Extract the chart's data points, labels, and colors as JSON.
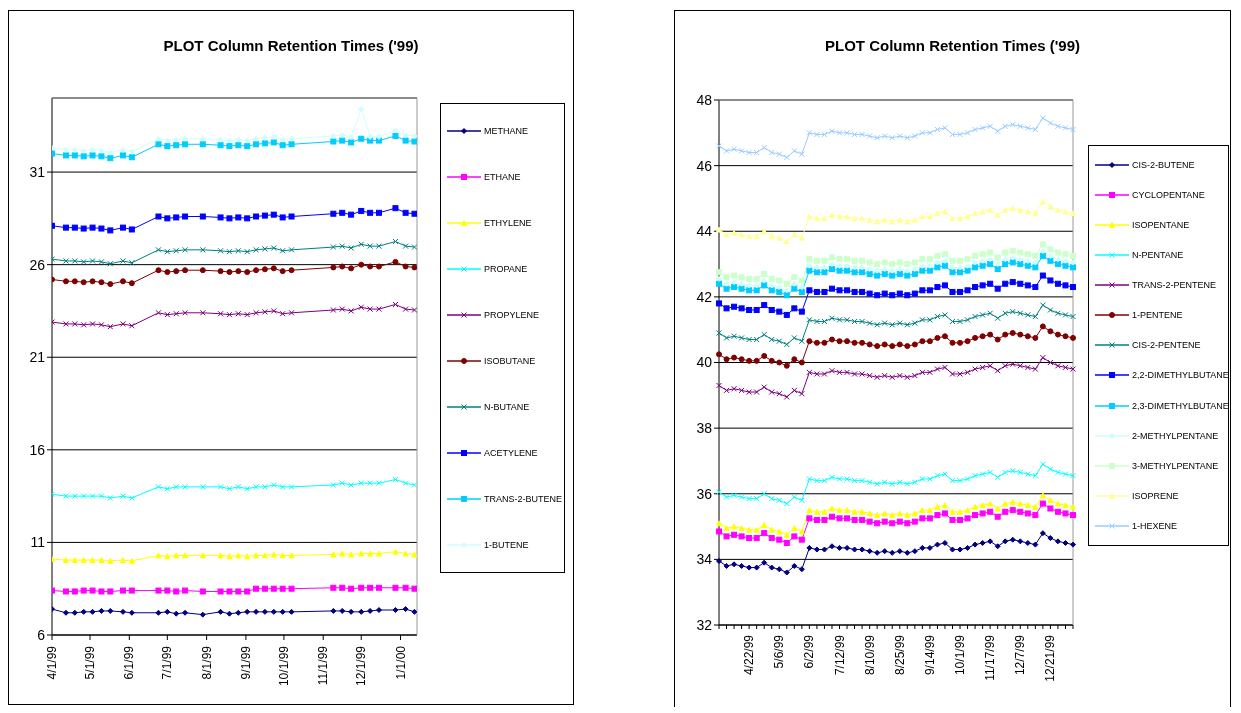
{
  "chart_data": [
    {
      "type": "line",
      "title": "PLOT Column Retention Times ('99)",
      "x": [
        "1999-04-01",
        "1999-04-12",
        "1999-04-19",
        "1999-04-26",
        "1999-05-03",
        "1999-05-10",
        "1999-05-17",
        "1999-05-27",
        "1999-06-03",
        "1999-06-24",
        "1999-07-01",
        "1999-07-08",
        "1999-07-15",
        "1999-07-29",
        "1999-08-12",
        "1999-08-19",
        "1999-08-26",
        "1999-09-02",
        "1999-09-09",
        "1999-09-16",
        "1999-09-23",
        "1999-09-30",
        "1999-10-07",
        "1999-11-09",
        "1999-11-16",
        "1999-11-23",
        "1999-12-01",
        "1999-12-08",
        "1999-12-15",
        "1999-12-28",
        "2000-01-05",
        "2000-01-12"
      ],
      "xlim": [
        "1999-04-01",
        "2000-01-14"
      ],
      "xticks": [
        {
          "value": "1999-04-01",
          "label": "4/1/99"
        },
        {
          "value": "1999-05-01",
          "label": "5/1/99"
        },
        {
          "value": "1999-06-01",
          "label": "6/1/99"
        },
        {
          "value": "1999-07-01",
          "label": "7/1/99"
        },
        {
          "value": "1999-08-01",
          "label": "8/1/99"
        },
        {
          "value": "1999-09-01",
          "label": "9/1/99"
        },
        {
          "value": "1999-10-01",
          "label": "10/1/99"
        },
        {
          "value": "1999-11-01",
          "label": "11/1/99"
        },
        {
          "value": "1999-12-01",
          "label": "12/1/99"
        },
        {
          "value": "2000-01-01",
          "label": "1/1/00"
        }
      ],
      "ylim": [
        6,
        35
      ],
      "yticks": [
        6,
        11,
        16,
        21,
        26,
        31
      ],
      "grid": "y",
      "legend": "right",
      "series": [
        {
          "name": "METHANE",
          "color": "#000080",
          "marker": "diamond",
          "values": [
            7.4,
            7.2,
            7.2,
            7.25,
            7.25,
            7.3,
            7.3,
            7.25,
            7.2,
            7.2,
            7.25,
            7.15,
            7.2,
            7.1,
            7.25,
            7.15,
            7.2,
            7.25,
            7.25,
            7.25,
            7.25,
            7.25,
            7.25,
            7.3,
            7.3,
            7.25,
            7.25,
            7.3,
            7.35,
            7.35,
            7.4,
            7.25
          ]
        },
        {
          "name": "ETHANE",
          "color": "#ff00ff",
          "marker": "square",
          "values": [
            8.4,
            8.35,
            8.35,
            8.4,
            8.4,
            8.35,
            8.35,
            8.4,
            8.4,
            8.4,
            8.4,
            8.35,
            8.4,
            8.35,
            8.35,
            8.35,
            8.35,
            8.35,
            8.5,
            8.5,
            8.5,
            8.5,
            8.5,
            8.55,
            8.55,
            8.5,
            8.55,
            8.55,
            8.55,
            8.55,
            8.55,
            8.5
          ]
        },
        {
          "name": "ETHYLENE",
          "color": "#ffff00",
          "marker": "triangle",
          "values": [
            10.1,
            10.05,
            10.05,
            10.05,
            10.05,
            10.05,
            10.0,
            10.05,
            10.0,
            10.3,
            10.25,
            10.3,
            10.3,
            10.3,
            10.3,
            10.25,
            10.3,
            10.25,
            10.3,
            10.3,
            10.35,
            10.3,
            10.3,
            10.35,
            10.4,
            10.35,
            10.4,
            10.4,
            10.4,
            10.5,
            10.4,
            10.35
          ]
        },
        {
          "name": "PROPANE",
          "color": "#00ffff",
          "marker": "cross",
          "values": [
            13.6,
            13.5,
            13.5,
            13.5,
            13.5,
            13.5,
            13.4,
            13.5,
            13.4,
            14.0,
            13.9,
            14.0,
            14.0,
            14.0,
            14.0,
            13.9,
            14.0,
            13.9,
            14.0,
            14.0,
            14.1,
            14.0,
            14.0,
            14.1,
            14.2,
            14.1,
            14.2,
            14.2,
            14.2,
            14.4,
            14.2,
            14.1
          ]
        },
        {
          "name": "PROPYLENE",
          "color": "#800080",
          "marker": "cross",
          "values": [
            22.9,
            22.8,
            22.8,
            22.75,
            22.8,
            22.75,
            22.65,
            22.8,
            22.7,
            23.4,
            23.3,
            23.35,
            23.4,
            23.4,
            23.35,
            23.3,
            23.35,
            23.3,
            23.4,
            23.45,
            23.5,
            23.35,
            23.4,
            23.55,
            23.6,
            23.5,
            23.7,
            23.6,
            23.6,
            23.85,
            23.6,
            23.55
          ]
        },
        {
          "name": "ISOBUTANE",
          "color": "#800000",
          "marker": "circle",
          "values": [
            25.2,
            25.1,
            25.1,
            25.05,
            25.1,
            25.05,
            24.95,
            25.1,
            25.0,
            25.7,
            25.6,
            25.65,
            25.7,
            25.7,
            25.65,
            25.6,
            25.65,
            25.6,
            25.7,
            25.75,
            25.8,
            25.65,
            25.7,
            25.85,
            25.9,
            25.8,
            26.0,
            25.9,
            25.9,
            26.15,
            25.9,
            25.85
          ]
        },
        {
          "name": "N-BUTANE",
          "color": "#008080",
          "marker": "cross",
          "values": [
            26.3,
            26.2,
            26.2,
            26.15,
            26.2,
            26.15,
            26.05,
            26.2,
            26.1,
            26.8,
            26.7,
            26.75,
            26.8,
            26.8,
            26.75,
            26.7,
            26.75,
            26.7,
            26.8,
            26.85,
            26.9,
            26.75,
            26.8,
            26.95,
            27.0,
            26.9,
            27.1,
            27.0,
            27.0,
            27.25,
            27.0,
            26.95
          ]
        },
        {
          "name": "ACETYLENE",
          "color": "#0000ff",
          "marker": "square",
          "values": [
            28.1,
            28.0,
            28.0,
            27.95,
            28.0,
            27.95,
            27.85,
            28.0,
            27.9,
            28.6,
            28.5,
            28.55,
            28.6,
            28.6,
            28.55,
            28.5,
            28.55,
            28.5,
            28.6,
            28.65,
            28.7,
            28.55,
            28.6,
            28.75,
            28.8,
            28.7,
            28.9,
            28.8,
            28.8,
            29.05,
            28.8,
            28.75
          ]
        },
        {
          "name": "TRANS-2-BUTENE",
          "color": "#00ccff",
          "marker": "square",
          "values": [
            32.0,
            31.9,
            31.9,
            31.85,
            31.9,
            31.85,
            31.75,
            31.9,
            31.8,
            32.5,
            32.4,
            32.45,
            32.5,
            32.5,
            32.45,
            32.4,
            32.45,
            32.4,
            32.5,
            32.55,
            32.6,
            32.45,
            32.5,
            32.65,
            32.7,
            32.6,
            32.8,
            32.7,
            32.7,
            32.95,
            32.7,
            32.65
          ]
        },
        {
          "name": "1-BUTENE",
          "color": "#ccffff",
          "marker": "diamond",
          "values": [
            32.3,
            32.2,
            32.2,
            32.15,
            32.2,
            32.15,
            32.05,
            32.2,
            32.1,
            32.8,
            32.7,
            32.75,
            32.8,
            32.8,
            32.75,
            32.7,
            32.75,
            32.7,
            32.8,
            32.85,
            32.9,
            32.75,
            32.8,
            32.95,
            33.0,
            32.9,
            34.4,
            32.9,
            32.9,
            33.25,
            33.0,
            32.95
          ]
        }
      ]
    },
    {
      "type": "line",
      "title": "PLOT Column Retention Times ('99)",
      "categories": [
        null,
        null,
        null,
        null,
        "4/22/99",
        null,
        null,
        null,
        "5/6/99",
        null,
        null,
        null,
        "6/2/99",
        null,
        null,
        null,
        "7/12/99",
        null,
        null,
        null,
        "8/10/99",
        null,
        null,
        null,
        "8/25/99",
        null,
        null,
        null,
        "9/14/99",
        null,
        null,
        null,
        "10/1/99",
        null,
        null,
        null,
        "11/17/99",
        null,
        null,
        null,
        "12/7/99",
        null,
        null,
        null,
        "12/21/99",
        null,
        null,
        null
      ],
      "ylim": [
        32,
        48
      ],
      "yticks": [
        32,
        34,
        36,
        38,
        40,
        42,
        44,
        46,
        48
      ],
      "grid": "y",
      "legend": "right",
      "series": [
        {
          "name": "CIS-2-BUTENE",
          "color": "#000080",
          "marker": "diamond",
          "values": [
            33.95,
            33.8,
            33.85,
            33.8,
            33.75,
            33.75,
            33.9,
            33.75,
            33.7,
            33.6,
            33.8,
            33.7,
            34.35,
            34.3,
            34.3,
            34.4,
            34.35,
            34.35,
            34.3,
            34.3,
            34.25,
            34.2,
            34.25,
            34.2,
            34.25,
            34.2,
            34.25,
            34.35,
            34.35,
            34.45,
            34.5,
            34.3,
            34.3,
            34.35,
            34.45,
            34.5,
            34.55,
            34.4,
            34.55,
            34.6,
            34.55,
            34.5,
            34.45,
            34.8,
            34.65,
            34.55,
            34.5,
            34.45
          ]
        },
        {
          "name": "CYCLOPENTANE",
          "color": "#ff00ff",
          "marker": "square",
          "values": [
            34.85,
            34.7,
            34.75,
            34.7,
            34.65,
            34.65,
            34.8,
            34.65,
            34.6,
            34.5,
            34.7,
            34.6,
            35.25,
            35.2,
            35.2,
            35.3,
            35.25,
            35.25,
            35.2,
            35.2,
            35.15,
            35.1,
            35.15,
            35.1,
            35.15,
            35.1,
            35.15,
            35.25,
            35.25,
            35.35,
            35.4,
            35.2,
            35.2,
            35.25,
            35.35,
            35.4,
            35.45,
            35.3,
            35.45,
            35.5,
            35.45,
            35.4,
            35.35,
            35.7,
            35.55,
            35.45,
            35.4,
            35.35
          ]
        },
        {
          "name": "ISOPENTANE",
          "color": "#ffff00",
          "marker": "triangle",
          "values": [
            35.1,
            34.95,
            35.0,
            34.95,
            34.9,
            34.9,
            35.05,
            34.9,
            34.85,
            34.75,
            34.95,
            34.85,
            35.5,
            35.45,
            35.45,
            35.55,
            35.5,
            35.5,
            35.45,
            35.45,
            35.4,
            35.35,
            35.4,
            35.35,
            35.4,
            35.35,
            35.4,
            35.5,
            35.5,
            35.6,
            35.65,
            35.45,
            35.45,
            35.5,
            35.6,
            35.65,
            35.7,
            35.55,
            35.7,
            35.75,
            35.7,
            35.65,
            35.6,
            35.95,
            35.8,
            35.7,
            35.65,
            35.6
          ]
        },
        {
          "name": "N-PENTANE",
          "color": "#00ffff",
          "marker": "cross",
          "values": [
            36.05,
            35.9,
            35.95,
            35.9,
            35.85,
            35.85,
            36.0,
            35.85,
            35.8,
            35.7,
            35.9,
            35.8,
            36.45,
            36.4,
            36.4,
            36.5,
            36.45,
            36.45,
            36.4,
            36.4,
            36.35,
            36.3,
            36.35,
            36.3,
            36.35,
            36.3,
            36.35,
            36.45,
            36.45,
            36.55,
            36.6,
            36.4,
            36.4,
            36.45,
            36.55,
            36.6,
            36.65,
            36.5,
            36.65,
            36.7,
            36.65,
            36.6,
            36.55,
            36.9,
            36.75,
            36.65,
            36.6,
            36.55
          ]
        },
        {
          "name": "TRANS-2-PENTENE",
          "color": "#800080",
          "marker": "cross",
          "values": [
            39.3,
            39.15,
            39.2,
            39.15,
            39.1,
            39.1,
            39.25,
            39.1,
            39.05,
            38.95,
            39.15,
            39.05,
            39.7,
            39.65,
            39.65,
            39.75,
            39.7,
            39.7,
            39.65,
            39.65,
            39.6,
            39.55,
            39.6,
            39.55,
            39.6,
            39.55,
            39.6,
            39.7,
            39.7,
            39.8,
            39.85,
            39.65,
            39.65,
            39.7,
            39.8,
            39.85,
            39.9,
            39.75,
            39.9,
            39.95,
            39.9,
            39.85,
            39.8,
            40.15,
            40.0,
            39.9,
            39.85,
            39.8
          ]
        },
        {
          "name": "1-PENTENE",
          "color": "#800000",
          "marker": "circle",
          "values": [
            40.25,
            40.1,
            40.15,
            40.1,
            40.05,
            40.05,
            40.2,
            40.05,
            40.0,
            39.9,
            40.1,
            40.0,
            40.65,
            40.6,
            40.6,
            40.7,
            40.65,
            40.65,
            40.6,
            40.6,
            40.55,
            40.5,
            40.55,
            40.5,
            40.55,
            40.5,
            40.55,
            40.65,
            40.65,
            40.75,
            40.8,
            40.6,
            40.6,
            40.65,
            40.75,
            40.8,
            40.85,
            40.7,
            40.85,
            40.9,
            40.85,
            40.8,
            40.75,
            41.1,
            40.95,
            40.85,
            40.8,
            40.75
          ]
        },
        {
          "name": "CIS-2-PENTENE",
          "color": "#008080",
          "marker": "cross",
          "values": [
            40.9,
            40.75,
            40.8,
            40.75,
            40.7,
            40.7,
            40.85,
            40.7,
            40.65,
            40.55,
            40.75,
            40.65,
            41.3,
            41.25,
            41.25,
            41.35,
            41.3,
            41.3,
            41.25,
            41.25,
            41.2,
            41.15,
            41.2,
            41.15,
            41.2,
            41.15,
            41.2,
            41.3,
            41.3,
            41.4,
            41.45,
            41.25,
            41.25,
            41.3,
            41.4,
            41.45,
            41.5,
            41.35,
            41.5,
            41.55,
            41.5,
            41.45,
            41.4,
            41.75,
            41.6,
            41.5,
            41.45,
            41.4
          ]
        },
        {
          "name": "2,2-DIMETHYLBUTANE",
          "color": "#0000ff",
          "marker": "square",
          "values": [
            41.8,
            41.65,
            41.7,
            41.65,
            41.6,
            41.6,
            41.75,
            41.6,
            41.55,
            41.45,
            41.65,
            41.55,
            42.2,
            42.15,
            42.15,
            42.25,
            42.2,
            42.2,
            42.15,
            42.15,
            42.1,
            42.05,
            42.1,
            42.05,
            42.1,
            42.05,
            42.1,
            42.2,
            42.2,
            42.3,
            42.35,
            42.15,
            42.15,
            42.2,
            42.3,
            42.35,
            42.4,
            42.25,
            42.4,
            42.45,
            42.4,
            42.35,
            42.3,
            42.65,
            42.5,
            42.4,
            42.35,
            42.3
          ]
        },
        {
          "name": "2,3-DIMETHYLBUTANE",
          "color": "#00ccff",
          "marker": "square",
          "values": [
            42.4,
            42.25,
            42.3,
            42.25,
            42.2,
            42.2,
            42.35,
            42.2,
            42.15,
            42.05,
            42.25,
            42.15,
            42.8,
            42.75,
            42.75,
            42.85,
            42.8,
            42.8,
            42.75,
            42.75,
            42.7,
            42.65,
            42.7,
            42.65,
            42.7,
            42.65,
            42.7,
            42.8,
            42.8,
            42.9,
            42.95,
            42.75,
            42.75,
            42.8,
            42.9,
            42.95,
            43.0,
            42.85,
            43.0,
            43.05,
            43.0,
            42.95,
            42.9,
            43.25,
            43.1,
            43.0,
            42.95,
            42.9
          ]
        },
        {
          "name": "2-METHYLPENTANE",
          "color": "#ccffff",
          "marker": "diamond",
          "values": [
            42.55,
            42.4,
            42.45,
            42.4,
            42.35,
            42.35,
            42.5,
            42.35,
            42.3,
            42.2,
            42.4,
            42.3,
            42.95,
            42.9,
            42.9,
            43.0,
            42.95,
            42.95,
            42.9,
            42.9,
            42.85,
            42.8,
            42.85,
            42.8,
            42.85,
            42.8,
            42.85,
            42.95,
            42.95,
            43.05,
            43.1,
            42.9,
            42.9,
            42.95,
            43.05,
            43.1,
            43.15,
            43.0,
            43.15,
            43.2,
            43.15,
            43.1,
            43.05,
            43.4,
            43.25,
            43.15,
            43.1,
            43.05
          ]
        },
        {
          "name": "3-METHYLPENTANE",
          "color": "#ccffcc",
          "marker": "square",
          "values": [
            42.75,
            42.6,
            42.65,
            42.6,
            42.55,
            42.55,
            42.7,
            42.55,
            42.5,
            42.4,
            42.6,
            42.5,
            43.15,
            43.1,
            43.1,
            43.2,
            43.15,
            43.15,
            43.1,
            43.1,
            43.05,
            43.0,
            43.05,
            43.0,
            43.05,
            43.0,
            43.05,
            43.15,
            43.15,
            43.25,
            43.3,
            43.1,
            43.1,
            43.15,
            43.25,
            43.3,
            43.35,
            43.2,
            43.35,
            43.4,
            43.35,
            43.3,
            43.25,
            43.6,
            43.45,
            43.35,
            43.3,
            43.25
          ]
        },
        {
          "name": "ISOPRENE",
          "color": "#ffff99",
          "marker": "triangle",
          "values": [
            44.05,
            43.9,
            43.95,
            43.9,
            43.85,
            43.85,
            44.0,
            43.85,
            43.8,
            43.7,
            43.9,
            43.8,
            44.45,
            44.4,
            44.4,
            44.5,
            44.45,
            44.45,
            44.4,
            44.4,
            44.35,
            44.3,
            44.35,
            44.3,
            44.35,
            44.3,
            44.35,
            44.45,
            44.45,
            44.55,
            44.6,
            44.4,
            44.4,
            44.45,
            44.55,
            44.6,
            44.65,
            44.5,
            44.65,
            44.7,
            44.65,
            44.6,
            44.55,
            44.9,
            44.75,
            44.65,
            44.6,
            44.55
          ]
        },
        {
          "name": "1-HEXENE",
          "color": "#99ccff",
          "marker": "cross",
          "values": [
            46.6,
            46.45,
            46.5,
            46.45,
            46.4,
            46.4,
            46.55,
            46.4,
            46.35,
            46.25,
            46.45,
            46.35,
            47.0,
            46.95,
            46.95,
            47.05,
            47.0,
            47.0,
            46.95,
            46.95,
            46.9,
            46.85,
            46.9,
            46.85,
            46.9,
            46.85,
            46.9,
            47.0,
            47.0,
            47.1,
            47.15,
            46.95,
            46.95,
            47.0,
            47.1,
            47.15,
            47.2,
            47.05,
            47.2,
            47.25,
            47.2,
            47.15,
            47.1,
            47.45,
            47.3,
            47.2,
            47.15,
            47.1
          ]
        }
      ]
    }
  ]
}
